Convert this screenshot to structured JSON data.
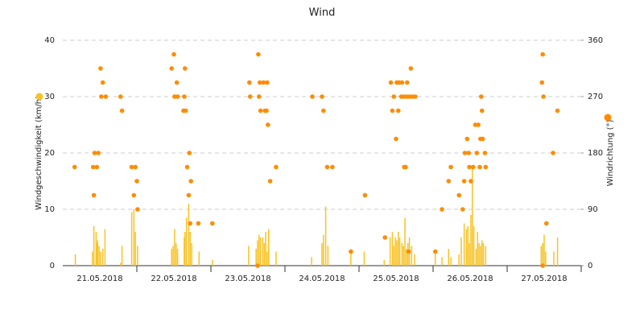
{
  "chart_data": {
    "type": "combo",
    "title": "Wind",
    "xlim": [
      0,
      7
    ],
    "xticks": [
      {
        "value": 0.5,
        "label": "21.05.2018"
      },
      {
        "value": 1.5,
        "label": "22.05.2018"
      },
      {
        "value": 2.5,
        "label": "23.05.2018"
      },
      {
        "value": 3.5,
        "label": "24.05.2018"
      },
      {
        "value": 4.5,
        "label": "25.05.2018"
      },
      {
        "value": 5.5,
        "label": "26.05.2018"
      },
      {
        "value": 6.5,
        "label": "27.05.2018"
      }
    ],
    "ylim": [
      0,
      40
    ],
    "yticks": [
      0,
      10,
      20,
      30,
      40
    ],
    "y2lim": [
      0,
      360
    ],
    "y2ticks": [
      0,
      90,
      180,
      270,
      360
    ],
    "grid": true,
    "series": [
      {
        "name": "Windgeschwindigkeit (km/h)",
        "type": "bar",
        "axis": "y",
        "color": "#f7c325",
        "x": [
          0.17,
          0.4,
          0.42,
          0.45,
          0.46,
          0.47,
          0.49,
          0.51,
          0.54,
          0.57,
          0.78,
          0.8,
          0.93,
          0.96,
          0.98,
          1.01,
          1.47,
          1.49,
          1.51,
          1.53,
          1.55,
          1.64,
          1.65,
          1.67,
          1.7,
          1.72,
          1.74,
          1.84,
          2.02,
          2.51,
          2.61,
          2.63,
          2.65,
          2.67,
          2.7,
          2.72,
          2.74,
          2.76,
          2.78,
          2.88,
          3.36,
          3.5,
          3.52,
          3.55,
          3.58,
          3.89,
          4.07,
          4.34,
          4.42,
          4.45,
          4.47,
          4.49,
          4.51,
          4.53,
          4.55,
          4.58,
          4.6,
          4.62,
          4.64,
          4.66,
          4.68,
          4.71,
          4.75,
          5.03,
          5.12,
          5.21,
          5.24,
          5.35,
          5.38,
          5.42,
          5.45,
          5.47,
          5.49,
          5.51,
          5.53,
          5.55,
          5.58,
          5.6,
          5.62,
          5.64,
          5.66,
          5.68,
          5.71,
          6.46,
          6.48,
          6.5,
          6.52,
          6.63,
          6.68
        ],
        "values": [
          2,
          2.5,
          7,
          6,
          4,
          4.5,
          3.5,
          2.5,
          3,
          6.5,
          0.5,
          3.5,
          9.5,
          10,
          6,
          3.5,
          3,
          3.5,
          6.5,
          4,
          3,
          5,
          6,
          8.5,
          11,
          6,
          4,
          2.5,
          1,
          3.5,
          3,
          4.5,
          5.5,
          5,
          5,
          4,
          6,
          2.5,
          6.5,
          2.5,
          1.5,
          4,
          5.5,
          10.5,
          3.5,
          2.5,
          2.5,
          1,
          5,
          6,
          3.5,
          5,
          4.5,
          6,
          5,
          4,
          3.5,
          8.5,
          3,
          4,
          5,
          3.5,
          2,
          2.5,
          1.5,
          3,
          1.5,
          2,
          5,
          7.5,
          6.5,
          7,
          4,
          9,
          17.5,
          7,
          3,
          6,
          4,
          3.5,
          4.5,
          4,
          3.5,
          3.5,
          4,
          5.5,
          2.5,
          2.5,
          5
        ]
      },
      {
        "name": "Windrichtung (°)",
        "type": "scatter",
        "axis": "y2",
        "color": "#ff8c00",
        "x": [
          0.16,
          0.41,
          0.42,
          0.43,
          0.46,
          0.48,
          0.51,
          0.52,
          0.54,
          0.58,
          0.78,
          0.8,
          0.93,
          0.96,
          0.98,
          1.0,
          1.01,
          1.47,
          1.5,
          1.51,
          1.54,
          1.55,
          1.63,
          1.64,
          1.65,
          1.66,
          1.68,
          1.71,
          1.7,
          1.73,
          1.72,
          1.83,
          2.02,
          2.52,
          2.53,
          2.63,
          2.64,
          2.65,
          2.66,
          2.67,
          2.71,
          2.73,
          2.75,
          2.76,
          2.77,
          2.8,
          2.88,
          3.37,
          3.5,
          3.52,
          3.57,
          3.64,
          3.89,
          4.08,
          4.35,
          4.43,
          4.45,
          4.47,
          4.5,
          4.51,
          4.53,
          4.54,
          4.57,
          4.58,
          4.6,
          4.61,
          4.63,
          4.64,
          4.65,
          4.67,
          4.68,
          4.7,
          4.72,
          4.76,
          5.03,
          5.12,
          5.21,
          5.24,
          5.35,
          5.4,
          5.42,
          5.43,
          5.46,
          5.48,
          5.49,
          5.51,
          5.54,
          5.57,
          5.59,
          5.61,
          5.63,
          5.64,
          5.65,
          5.66,
          5.67,
          5.7,
          5.71,
          6.47,
          6.48,
          6.49,
          6.53,
          6.62,
          6.68,
          6.48
        ],
        "values": [
          157.5,
          157.5,
          112.5,
          180,
          157.5,
          180,
          315,
          270,
          292.5,
          270,
          270,
          247.5,
          157.5,
          112.5,
          157.5,
          135,
          90,
          315,
          337.5,
          270,
          292.5,
          270,
          247.5,
          270,
          315,
          247.5,
          157.5,
          180,
          112.5,
          135,
          67.5,
          67.5,
          67.5,
          292.5,
          270,
          0,
          337.5,
          270,
          292.5,
          247.5,
          292.5,
          247.5,
          247.5,
          292.5,
          225,
          135,
          157.5,
          270,
          270,
          247.5,
          157.5,
          157.5,
          22.5,
          112.5,
          45,
          292.5,
          247.5,
          270,
          202.5,
          292.5,
          247.5,
          292.5,
          270,
          292.5,
          270,
          157.5,
          157.5,
          270,
          292.5,
          22.5,
          270,
          315,
          270,
          270,
          22.5,
          90,
          135,
          157.5,
          112.5,
          90,
          135,
          180,
          202.5,
          180,
          157.5,
          135,
          157.5,
          225,
          180,
          225,
          157.5,
          202.5,
          270,
          247.5,
          202.5,
          180,
          157.5,
          292.5,
          337.5,
          270,
          67.5,
          180,
          247.5,
          0
        ]
      }
    ]
  }
}
